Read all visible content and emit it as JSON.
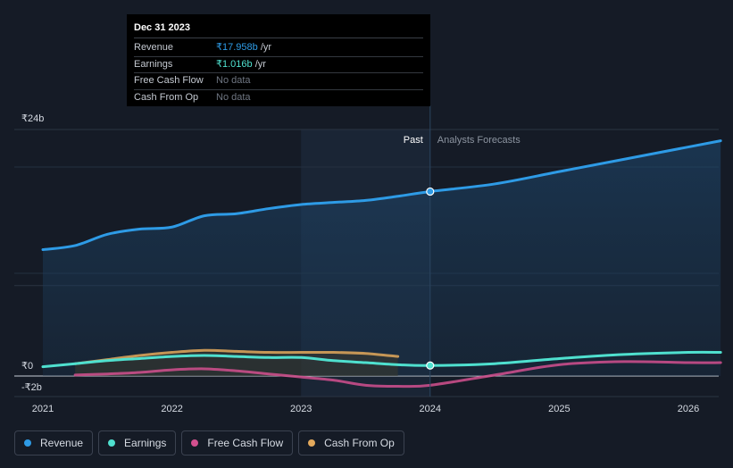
{
  "tooltip": {
    "date": "Dec 31 2023",
    "rows": [
      {
        "label": "Revenue",
        "value": "₹17.958b",
        "unit": "/yr",
        "color": "#2e9be6"
      },
      {
        "label": "Earnings",
        "value": "₹1.016b",
        "unit": "/yr",
        "color": "#4fe0cf"
      },
      {
        "label": "Free Cash Flow",
        "value": "No data",
        "unit": "",
        "color": "#6f7682"
      },
      {
        "label": "Cash From Op",
        "value": "No data",
        "unit": "",
        "color": "#6f7682"
      }
    ]
  },
  "legend": [
    {
      "label": "Revenue",
      "color": "#2e9be6"
    },
    {
      "label": "Earnings",
      "color": "#4fe0cf"
    },
    {
      "label": "Free Cash Flow",
      "color": "#d3508f"
    },
    {
      "label": "Cash From Op",
      "color": "#e3a95c"
    }
  ],
  "chart_data": {
    "type": "line",
    "title": "",
    "ylim": [
      -2,
      24
    ],
    "y_ticks": [
      {
        "value": 24,
        "label": "₹24b"
      },
      {
        "value": 0,
        "label": "₹0"
      },
      {
        "value": -2,
        "label": "-₹2b"
      }
    ],
    "x_ticks": [
      {
        "value": 2021,
        "label": "2021"
      },
      {
        "value": 2022,
        "label": "2022"
      },
      {
        "value": 2023,
        "label": "2023"
      },
      {
        "value": 2024,
        "label": "2024"
      },
      {
        "value": 2025,
        "label": "2025"
      },
      {
        "value": 2026,
        "label": "2026"
      }
    ],
    "xlim": [
      2020.8,
      2026.25
    ],
    "divider_x": 2024,
    "past_label": "Past",
    "forecast_label": "Analysts Forecasts",
    "highlight_start": 2023,
    "series": [
      {
        "name": "Revenue",
        "color": "#2e9be6",
        "fill": true,
        "x": [
          2021,
          2021.25,
          2021.5,
          2021.75,
          2022,
          2022.25,
          2022.5,
          2022.75,
          2023,
          2023.25,
          2023.5,
          2023.75,
          2024,
          2024.5,
          2025,
          2025.5,
          2026,
          2026.25
        ],
        "y": [
          12.3,
          12.7,
          13.8,
          14.3,
          14.5,
          15.6,
          15.8,
          16.3,
          16.7,
          16.9,
          17.1,
          17.5,
          17.96,
          18.7,
          19.9,
          21.1,
          22.3,
          22.9
        ]
      },
      {
        "name": "Earnings",
        "color": "#4fe0cf",
        "fill": false,
        "x": [
          2021,
          2021.25,
          2021.5,
          2021.75,
          2022,
          2022.25,
          2022.5,
          2022.75,
          2023,
          2023.25,
          2023.5,
          2023.75,
          2024,
          2024.5,
          2025,
          2025.5,
          2026,
          2026.25
        ],
        "y": [
          0.9,
          1.2,
          1.5,
          1.7,
          1.9,
          2.0,
          1.9,
          1.8,
          1.8,
          1.5,
          1.3,
          1.1,
          1.02,
          1.2,
          1.7,
          2.1,
          2.3,
          2.3
        ]
      },
      {
        "name": "Free Cash Flow",
        "color": "#d3508f",
        "fill": false,
        "x": [
          2021.25,
          2021.5,
          2021.75,
          2022,
          2022.25,
          2022.5,
          2022.75,
          2023,
          2023.25,
          2023.5,
          2023.75,
          2024,
          2024.5,
          2025,
          2025.5,
          2026,
          2026.25
        ],
        "y": [
          0.1,
          0.2,
          0.35,
          0.6,
          0.7,
          0.5,
          0.2,
          -0.1,
          -0.4,
          -0.9,
          -1.0,
          -0.9,
          0.1,
          1.1,
          1.4,
          1.3,
          1.3
        ]
      },
      {
        "name": "Cash From Op",
        "color": "#e3a95c",
        "fill": false,
        "x": [
          2021.25,
          2021.5,
          2021.75,
          2022,
          2022.25,
          2022.5,
          2022.75,
          2023,
          2023.25,
          2023.5,
          2023.75
        ],
        "y": [
          1.2,
          1.6,
          2.0,
          2.3,
          2.5,
          2.4,
          2.3,
          2.3,
          2.3,
          2.2,
          1.9
        ]
      }
    ]
  }
}
